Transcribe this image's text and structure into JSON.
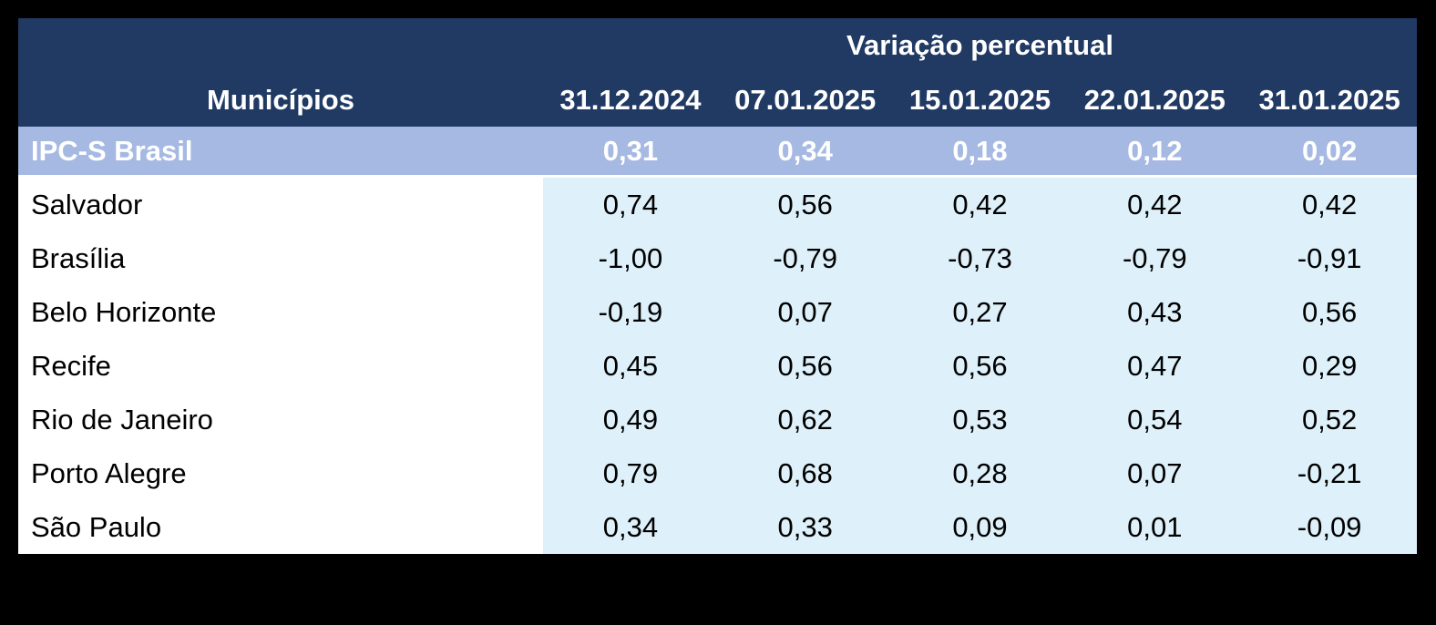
{
  "colors": {
    "background": "#000000",
    "header_navy": "#203a64",
    "highlight_row_blue": "#a6b9e2",
    "value_cell_blue": "#def0f9",
    "label_cell_white": "#ffffff",
    "header_text": "#ffffff",
    "body_text": "#000000"
  },
  "table": {
    "header": {
      "group_title": "Variação percentual",
      "municipios_label": "Municípios",
      "dates": [
        "31.12.2024",
        "07.01.2025",
        "15.01.2025",
        "22.01.2025",
        "31.01.2025"
      ]
    },
    "highlight_row": {
      "label": "IPC-S Brasil",
      "values": [
        "0,31",
        "0,34",
        "0,18",
        "0,12",
        "0,02"
      ]
    },
    "rows": [
      {
        "label": "Salvador",
        "values": [
          "0,74",
          "0,56",
          "0,42",
          "0,42",
          "0,42"
        ]
      },
      {
        "label": "Brasília",
        "values": [
          "-1,00",
          "-0,79",
          "-0,73",
          "-0,79",
          "-0,91"
        ]
      },
      {
        "label": "Belo Horizonte",
        "values": [
          "-0,19",
          "0,07",
          "0,27",
          "0,43",
          "0,56"
        ]
      },
      {
        "label": "Recife",
        "values": [
          "0,45",
          "0,56",
          "0,56",
          "0,47",
          "0,29"
        ]
      },
      {
        "label": "Rio de Janeiro",
        "values": [
          "0,49",
          "0,62",
          "0,53",
          "0,54",
          "0,52"
        ]
      },
      {
        "label": "Porto Alegre",
        "values": [
          "0,79",
          "0,68",
          "0,28",
          "0,07",
          "-0,21"
        ]
      },
      {
        "label": "São Paulo",
        "values": [
          "0,34",
          "0,33",
          "0,09",
          "0,01",
          "-0,09"
        ]
      }
    ]
  },
  "chart_data": {
    "type": "table",
    "title": "Variação percentual",
    "row_header": "Municípios",
    "columns": [
      "31.12.2024",
      "07.01.2025",
      "15.01.2025",
      "22.01.2025",
      "31.01.2025"
    ],
    "rows": [
      {
        "label": "IPC-S Brasil",
        "values": [
          0.31,
          0.34,
          0.18,
          0.12,
          0.02
        ],
        "highlighted": true
      },
      {
        "label": "Salvador",
        "values": [
          0.74,
          0.56,
          0.42,
          0.42,
          0.42
        ],
        "highlighted": false
      },
      {
        "label": "Brasília",
        "values": [
          -1.0,
          -0.79,
          -0.73,
          -0.79,
          -0.91
        ],
        "highlighted": false
      },
      {
        "label": "Belo Horizonte",
        "values": [
          -0.19,
          0.07,
          0.27,
          0.43,
          0.56
        ],
        "highlighted": false
      },
      {
        "label": "Recife",
        "values": [
          0.45,
          0.56,
          0.56,
          0.47,
          0.29
        ],
        "highlighted": false
      },
      {
        "label": "Rio de Janeiro",
        "values": [
          0.49,
          0.62,
          0.53,
          0.54,
          0.52
        ],
        "highlighted": false
      },
      {
        "label": "Porto Alegre",
        "values": [
          0.79,
          0.68,
          0.28,
          0.07,
          -0.21
        ],
        "highlighted": false
      },
      {
        "label": "São Paulo",
        "values": [
          0.34,
          0.33,
          0.09,
          0.01,
          -0.09
        ],
        "highlighted": false
      }
    ],
    "value_unit": "percent",
    "decimal_separator": ",",
    "layout": {
      "grid": false,
      "highlight_row_style": "periwinkle band with white bold text"
    }
  }
}
